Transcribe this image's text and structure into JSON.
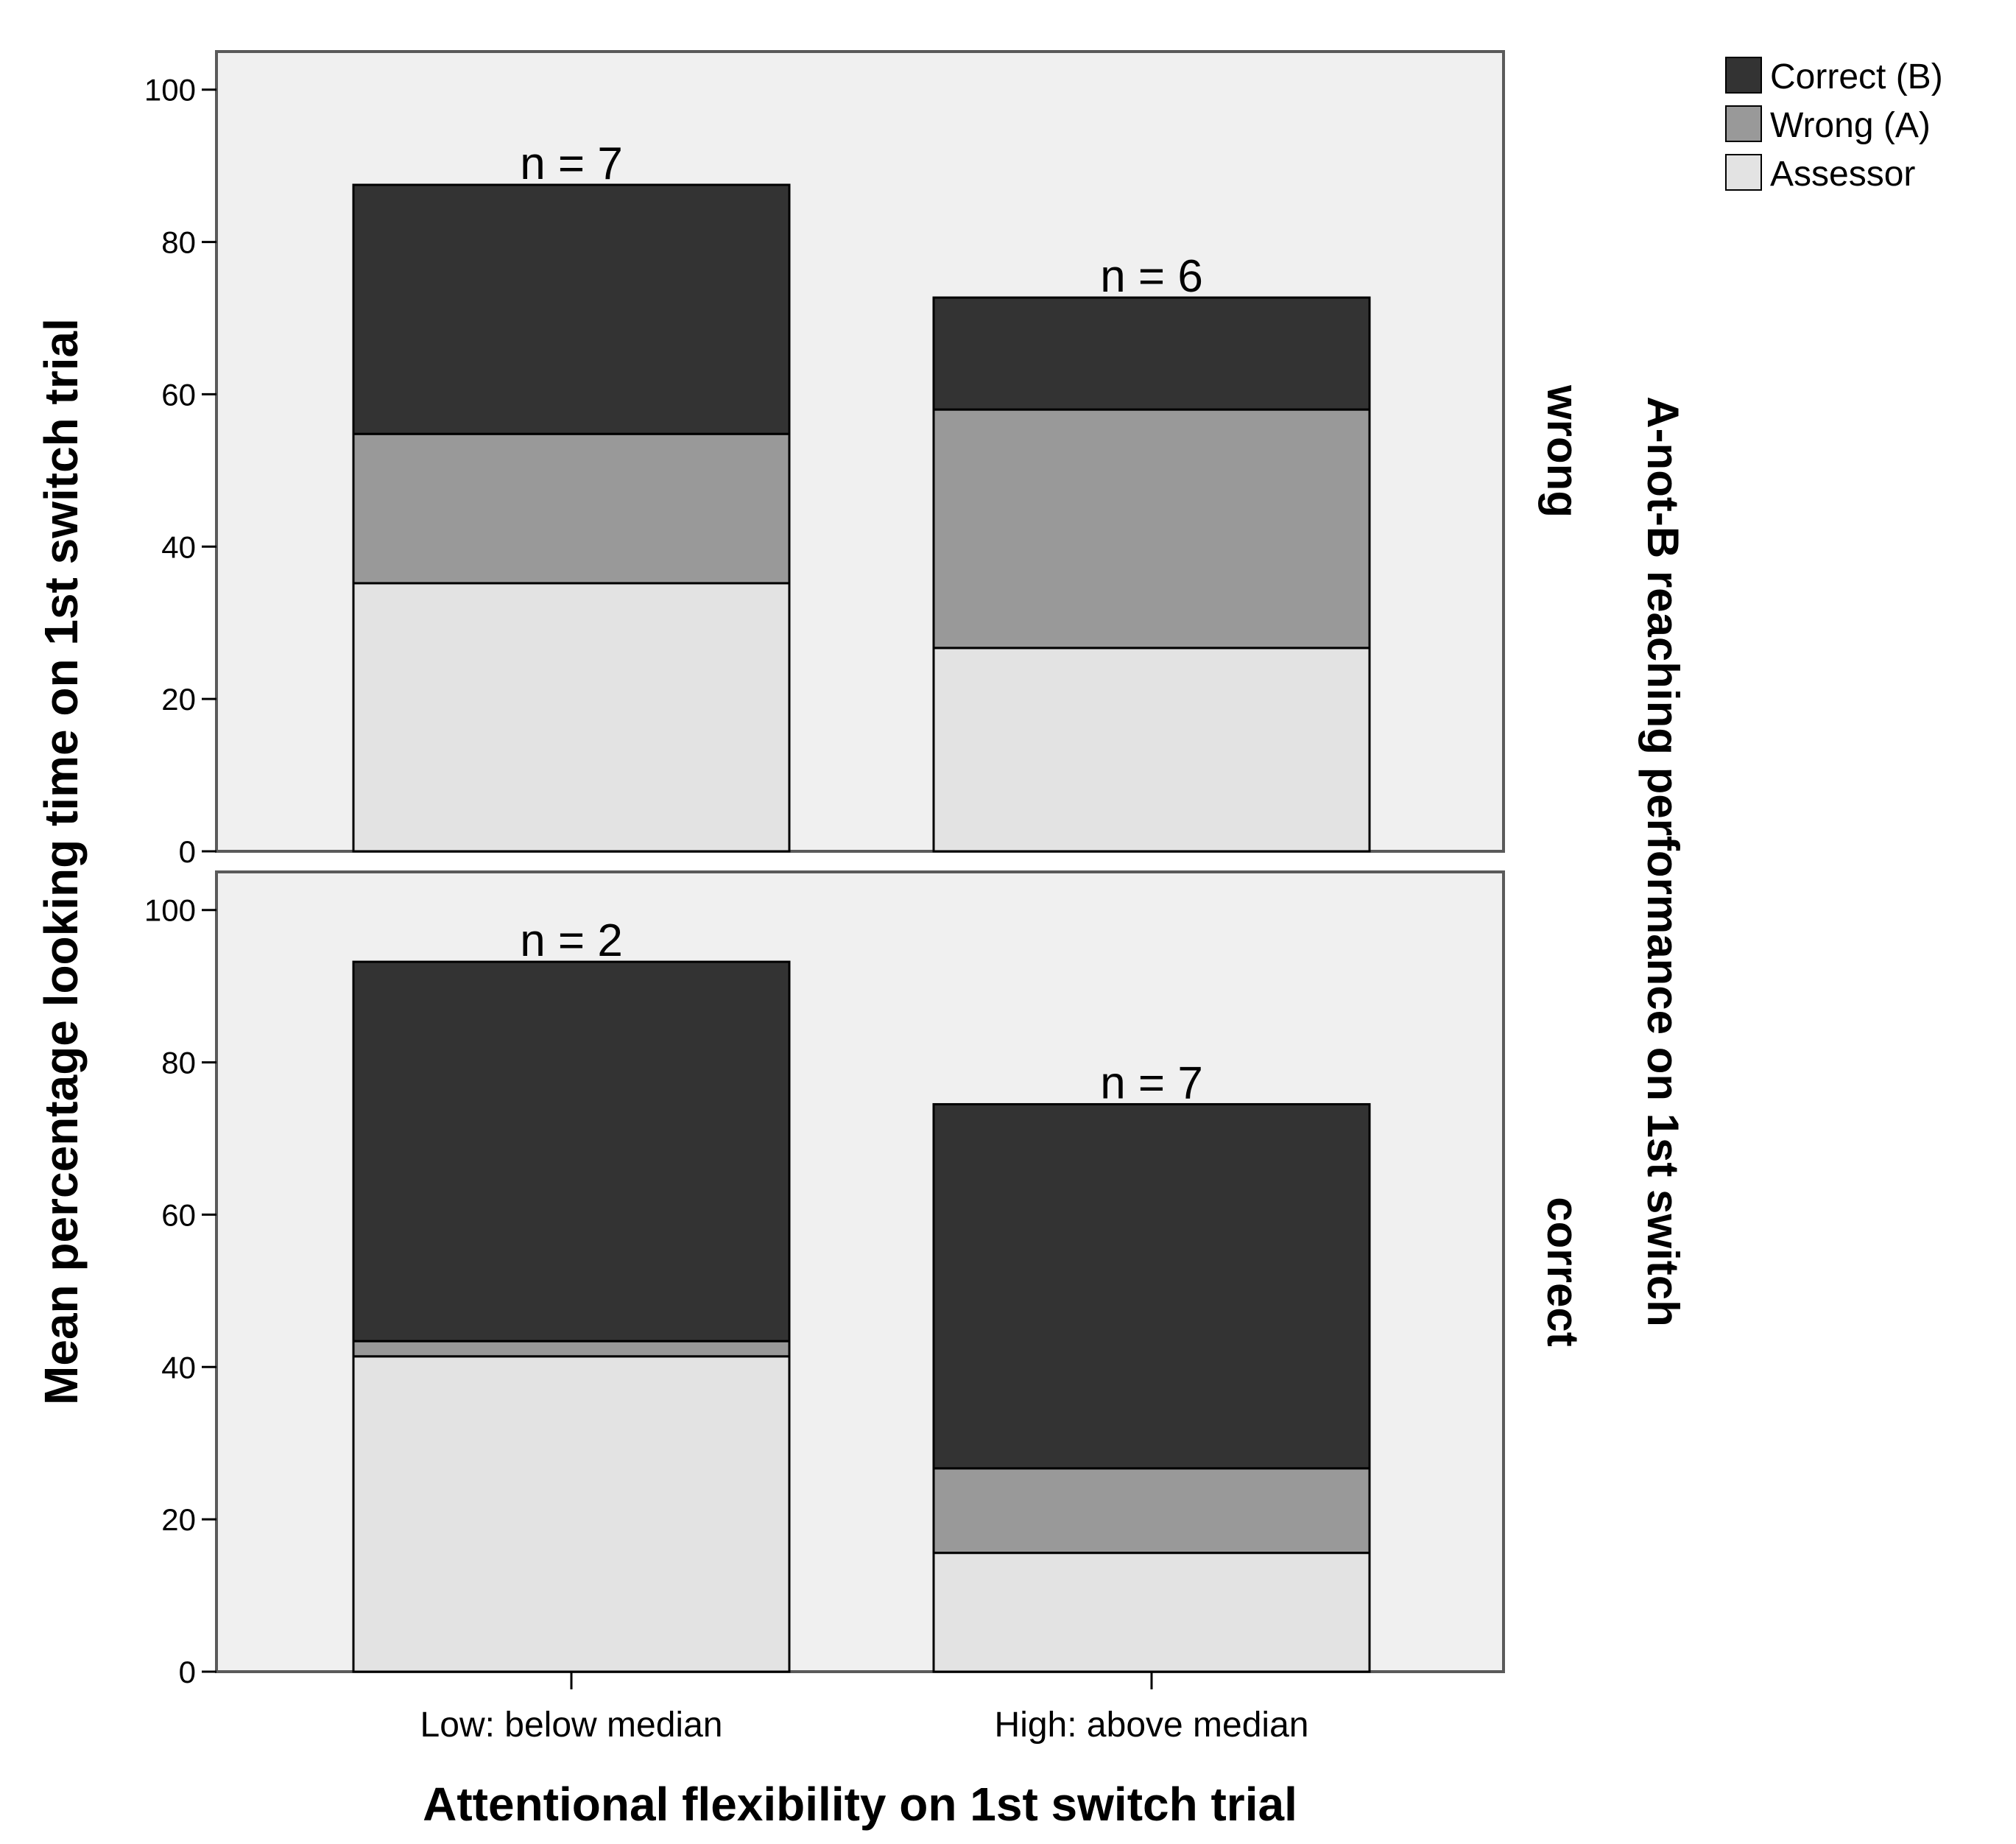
{
  "chart_data": {
    "type": "bar",
    "stacked": true,
    "categories": [
      "Low: below median",
      "High: above median"
    ],
    "xlabel": "Attentional flexibility on 1st switch trial",
    "ylabel": "Mean percentage looking time on 1st switch trial",
    "facet_label": "A-not-B reaching performance on 1st switch",
    "ylim": [
      0,
      105
    ],
    "yticks": [
      0,
      20,
      40,
      60,
      80,
      100
    ],
    "series": [
      {
        "name": "Assessor",
        "color": "#e3e3e3"
      },
      {
        "name": "Wrong (A)",
        "color": "#999999"
      },
      {
        "name": "Correct (B)",
        "color": "#333333"
      }
    ],
    "legend_order": [
      "Correct (B)",
      "Wrong (A)",
      "Assessor"
    ],
    "legend_position": "top-right",
    "panels": [
      {
        "label": "wrong",
        "bars": [
          {
            "category": "Low: below median",
            "n": "n = 7",
            "values": {
              "Assessor": 35.2,
              "Wrong (A)": 19.6,
              "Correct (B)": 32.7
            }
          },
          {
            "category": "High: above median",
            "n": "n = 6",
            "values": {
              "Assessor": 26.7,
              "Wrong (A)": 31.3,
              "Correct (B)": 14.7
            }
          }
        ]
      },
      {
        "label": "correct",
        "bars": [
          {
            "category": "Low: below median",
            "n": "n = 2",
            "values": {
              "Assessor": 41.4,
              "Wrong (A)": 2.0,
              "Correct (B)": 49.8
            }
          },
          {
            "category": "High: above median",
            "n": "n = 7",
            "values": {
              "Assessor": 15.6,
              "Wrong (A)": 11.1,
              "Correct (B)": 47.8
            }
          }
        ]
      }
    ]
  }
}
